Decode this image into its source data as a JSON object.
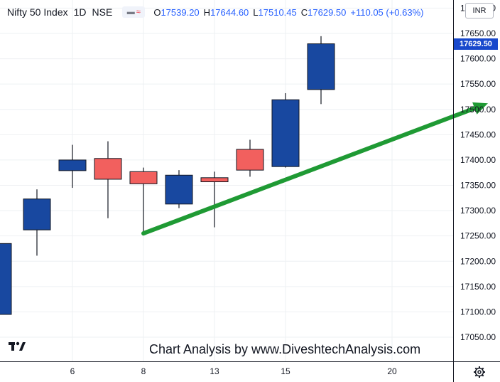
{
  "header": {
    "symbol": "Nifty 50 Index",
    "timeframe": "1D",
    "exchange": "NSE",
    "pill_left": "▬",
    "pill_right": "≈",
    "open_label": "O",
    "open": "17539.20",
    "high_label": "H",
    "high": "17644.60",
    "low_label": "L",
    "low": "17510.45",
    "close_label": "C",
    "close": "17629.50",
    "change": "+110.05 (+0.63%)"
  },
  "currency": "INR",
  "last_price_label": "17629.50",
  "watermark": "Chart Analysis by www.DiveshtechAnalysis.com",
  "colors": {
    "up": "#1848a0",
    "down": "#f2605e",
    "arrow": "#1f9a34",
    "grid": "#eef0f3",
    "axis_text": "#131722",
    "label_bg": "#1848cc"
  },
  "icons": {
    "logo": "tradingview-logo-icon",
    "settings": "gear-icon",
    "arrow": "trend-arrow-icon"
  },
  "chart_data": {
    "type": "candlestick",
    "ylim": [
      17000,
      17700
    ],
    "y_ticks": [
      17050,
      17100,
      17150,
      17200,
      17250,
      17300,
      17350,
      17400,
      17450,
      17500,
      17550,
      17600,
      17650,
      17700
    ],
    "y_tick_labels": [
      "17050.00",
      "17100.00",
      "17150.00",
      "17200.00",
      "17250.00",
      "17300.00",
      "17350.00",
      "17400.00",
      "17450.00",
      "17500.00",
      "17550.00",
      "17600.00",
      "17650.00",
      "17700.00"
    ],
    "x_ticks": [
      {
        "label": "6",
        "index": 2
      },
      {
        "label": "8",
        "index": 4
      },
      {
        "label": "13",
        "index": 6
      },
      {
        "label": "15",
        "index": 8
      },
      {
        "label": "20",
        "index": 11
      }
    ],
    "candles": [
      {
        "index": -0.1,
        "open": 17095,
        "high": 17248,
        "low": 17057,
        "close": 17235
      },
      {
        "index": 1,
        "open": 17262,
        "high": 17342,
        "low": 17211,
        "close": 17323
      },
      {
        "index": 2,
        "open": 17379,
        "high": 17430,
        "low": 17345,
        "close": 17400
      },
      {
        "index": 3,
        "open": 17403,
        "high": 17437,
        "low": 17285,
        "close": 17362
      },
      {
        "index": 4,
        "open": 17377,
        "high": 17385,
        "low": 17255,
        "close": 17353
      },
      {
        "index": 5,
        "open": 17313,
        "high": 17380,
        "low": 17305,
        "close": 17370
      },
      {
        "index": 6,
        "open": 17365,
        "high": 17377,
        "low": 17267,
        "close": 17357
      },
      {
        "index": 7,
        "open": 17421,
        "high": 17440,
        "low": 17367,
        "close": 17380
      },
      {
        "index": 8,
        "open": 17387,
        "high": 17532,
        "low": 17385,
        "close": 17519
      },
      {
        "index": 9,
        "open": 17539.2,
        "high": 17644.6,
        "low": 17510.45,
        "close": 17629.5
      }
    ],
    "trend_arrow": {
      "from": {
        "index": 4,
        "value": 17255
      },
      "to": {
        "index": 13.7,
        "value": 17512
      }
    },
    "grid": true
  }
}
